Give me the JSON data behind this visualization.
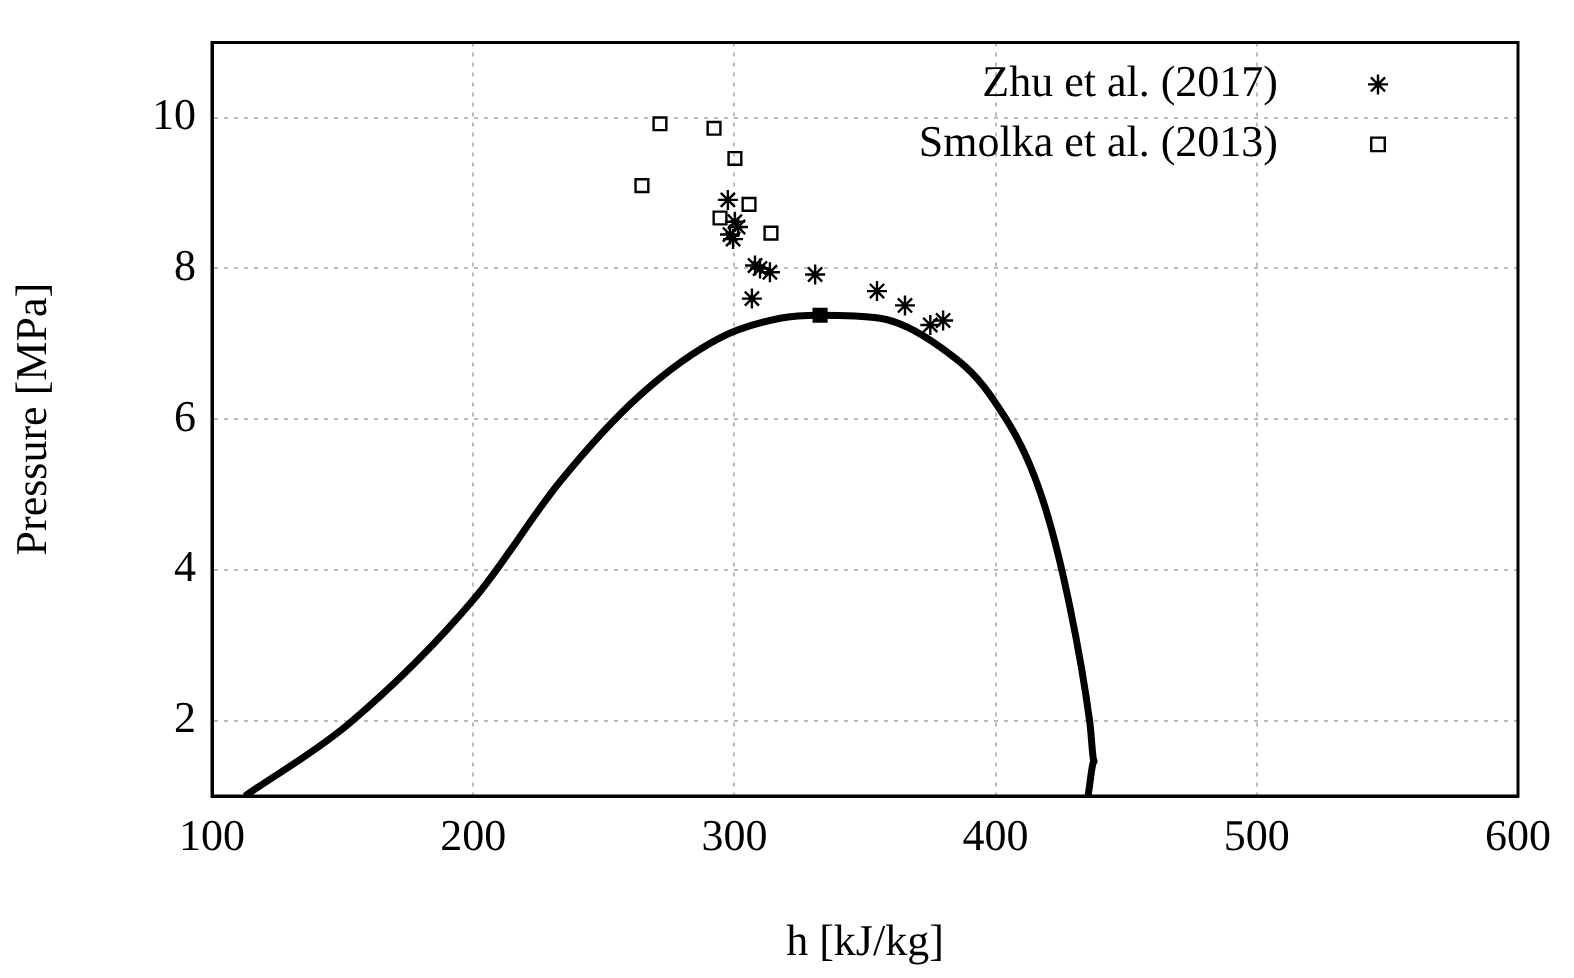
{
  "chart_data": {
    "type": "scatter",
    "xlabel": "h [kJ/kg]",
    "ylabel": "Pressure [MPa]",
    "xlim": [
      100,
      600
    ],
    "xticks": [
      100,
      200,
      300,
      400,
      500,
      600
    ],
    "ylim": [
      1,
      11
    ],
    "yticks": [
      2,
      4,
      6,
      8,
      10
    ],
    "grid": true,
    "legend": "top right",
    "series": [
      {
        "type": "line",
        "color": "#000000",
        "marker": "none",
        "x": [
          112.6,
          152.8,
          200.7,
          233.2,
          263.9,
          294.5,
          317.5,
          332.8,
          355.7,
          378.7,
          397.9,
          417,
          428.5,
          436.1,
          437.7,
          435.4
        ],
        "values": [
          1.0,
          1.97,
          3.63,
          5.17,
          6.32,
          7.08,
          7.34,
          7.38,
          7.34,
          6.96,
          6.32,
          5.04,
          3.5,
          1.97,
          1.46,
          1.0
        ]
      },
      {
        "type": "scatter",
        "color": "#000000",
        "marker": "square",
        "x": [
          332.8
        ],
        "values": [
          7.38
        ]
      },
      {
        "type": "scatter",
        "name": "Zhu et al. (2017)",
        "color": "#000000",
        "marker": "cross",
        "x": [
          297.5,
          300.2,
          301.4,
          298.3,
          299.5,
          307.9,
          309.8,
          313.6,
          306.7,
          330.9,
          354.6,
          365.3,
          375,
          379.9
        ],
        "values": [
          8.91,
          8.62,
          8.55,
          8.45,
          8.39,
          8.04,
          8.0,
          7.95,
          7.6,
          7.92,
          7.7,
          7.51,
          7.25,
          7.31
        ]
      },
      {
        "type": "scatter",
        "name": "Smolka et al. (2013)",
        "color": "#000000",
        "marker": "square",
        "x": [
          271.5,
          292.2,
          300.2,
          264.6,
          305.6,
          294.5,
          314.0
        ],
        "values": [
          9.92,
          9.86,
          9.46,
          9.1,
          8.85,
          8.67,
          8.47
        ]
      }
    ]
  }
}
